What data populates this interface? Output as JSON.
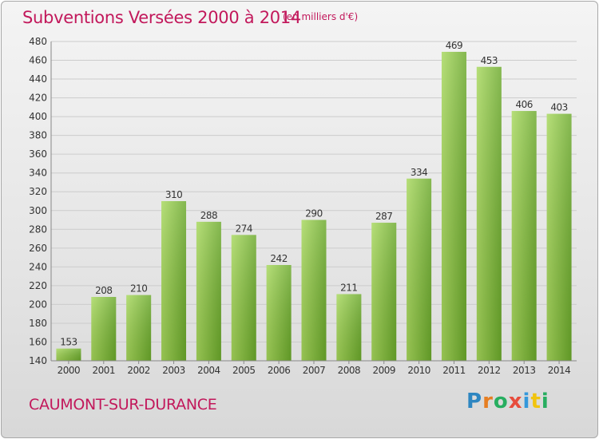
{
  "header": {
    "title": "Subventions Versées 2000 à 2014",
    "unit": "(en milliers d'€)"
  },
  "footer": {
    "commune": "CAUMONT-SUR-DURANCE",
    "logo": "Proxiti"
  },
  "colors": {
    "title": "#c2185b",
    "bar_light": "#a6d75b",
    "bar_dark": "#6aa82a",
    "grid": "#cccccc"
  },
  "chart_data": {
    "type": "bar",
    "categories": [
      "2000",
      "2001",
      "2002",
      "2003",
      "2004",
      "2005",
      "2006",
      "2007",
      "2008",
      "2009",
      "2010",
      "2011",
      "2012",
      "2013",
      "2014"
    ],
    "values": [
      153,
      208,
      210,
      310,
      288,
      274,
      242,
      290,
      211,
      287,
      334,
      469,
      453,
      406,
      403
    ],
    "title": "Subventions Versées 2000 à 2014",
    "xlabel": "",
    "ylabel": "",
    "ylim": [
      140,
      480
    ],
    "yticks": [
      140,
      160,
      180,
      200,
      220,
      240,
      260,
      280,
      300,
      320,
      340,
      360,
      380,
      400,
      420,
      440,
      460,
      480
    ],
    "grid": true,
    "data_labels": true
  }
}
